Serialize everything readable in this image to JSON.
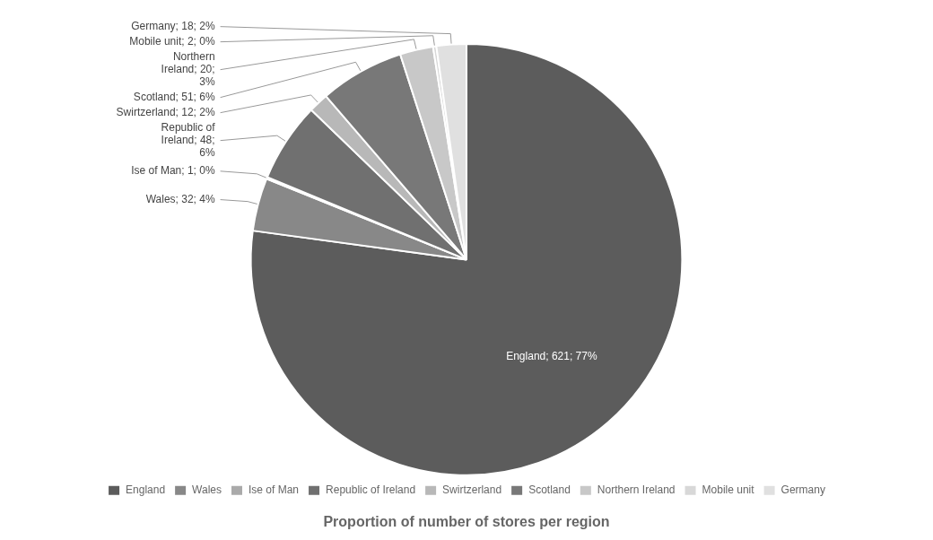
{
  "chart_data": {
    "type": "pie",
    "title": "Proportion of number of stores per region",
    "categories": [
      "England",
      "Wales",
      "Ise of Man",
      "Republic of Ireland",
      "Swirtzerland",
      "Scotland",
      "Northern Ireland",
      "Mobile unit",
      "Germany"
    ],
    "values": [
      621,
      32,
      1,
      48,
      12,
      51,
      20,
      2,
      18
    ],
    "colors": [
      "#5c5c5c",
      "#888888",
      "#aaaaaa",
      "#707070",
      "#b8b8b8",
      "#787878",
      "#c8c8c8",
      "#d8d8d8",
      "#e0e0e0"
    ],
    "data_labels": true,
    "value_labels": [
      "England; 621; 77%",
      "Wales; 32; 4%",
      "Ise of Man; 1; 0%",
      "Republic of\nIreland; 48;\n6%",
      "Swirtzerland; 12; 2%",
      "Scotland; 51; 6%",
      "Northern\nIreland; 20;\n3%",
      "Mobile unit; 2; 0%",
      "Germany; 18; 2%"
    ],
    "legend": "bottom"
  }
}
